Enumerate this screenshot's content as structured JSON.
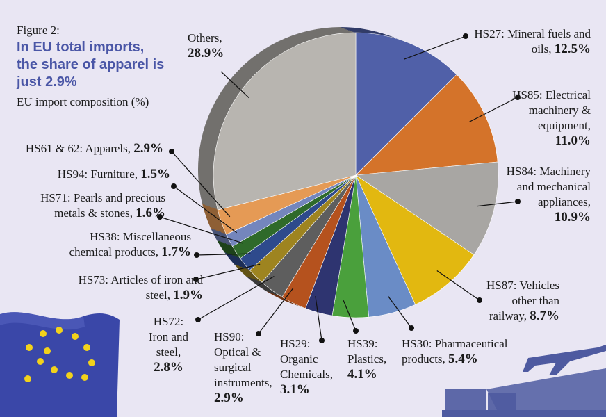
{
  "chart_data": {
    "type": "pie",
    "figure_label": "Figure 2:",
    "title": "In EU total imports, the share of apparel is just 2.9%",
    "subtitle": "EU import composition (%)",
    "categories": [
      "HS27: Mineral fuels and oils,",
      "HS85: Electrical machinery & equipment,",
      "HS84: Machinery and mechanical appliances,",
      "HS87: Vehicles other than railway,",
      "HS30: Pharmaceutical products,",
      "HS39: Plastics,",
      "HS29: Organic Chemicals,",
      "HS90: Optical & surgical instruments,",
      "HS72: Iron and steel,",
      "HS73: Articles of iron and steel,",
      "HS38: Miscellaneous chemical products,",
      "HS71: Pearls and precious metals & stones,",
      "HS94: Furniture,",
      "HS61 & 62: Apparels,",
      "Others,"
    ],
    "values": [
      12.5,
      11.0,
      10.9,
      8.7,
      5.4,
      4.1,
      3.1,
      2.9,
      2.8,
      1.9,
      1.7,
      1.6,
      1.5,
      2.9,
      28.9
    ],
    "value_labels": [
      "12.5%",
      "11.0%",
      "10.9%",
      "8.7%",
      "5.4%",
      "4.1%",
      "3.1%",
      "2.9%",
      "2.8%",
      "1.9%",
      "1.7%",
      "1.6%",
      "1.5%",
      "2.9%",
      "28.9%"
    ],
    "colors": [
      "#5060a8",
      "#d4732a",
      "#a8a6a3",
      "#e2b810",
      "#6a8cc6",
      "#4aa03c",
      "#2e3470",
      "#b5521e",
      "#5e5e5e",
      "#9e8420",
      "#2e4a8c",
      "#2f6a2a",
      "#7486bd",
      "#e59a55",
      "#b8b5b0"
    ]
  }
}
